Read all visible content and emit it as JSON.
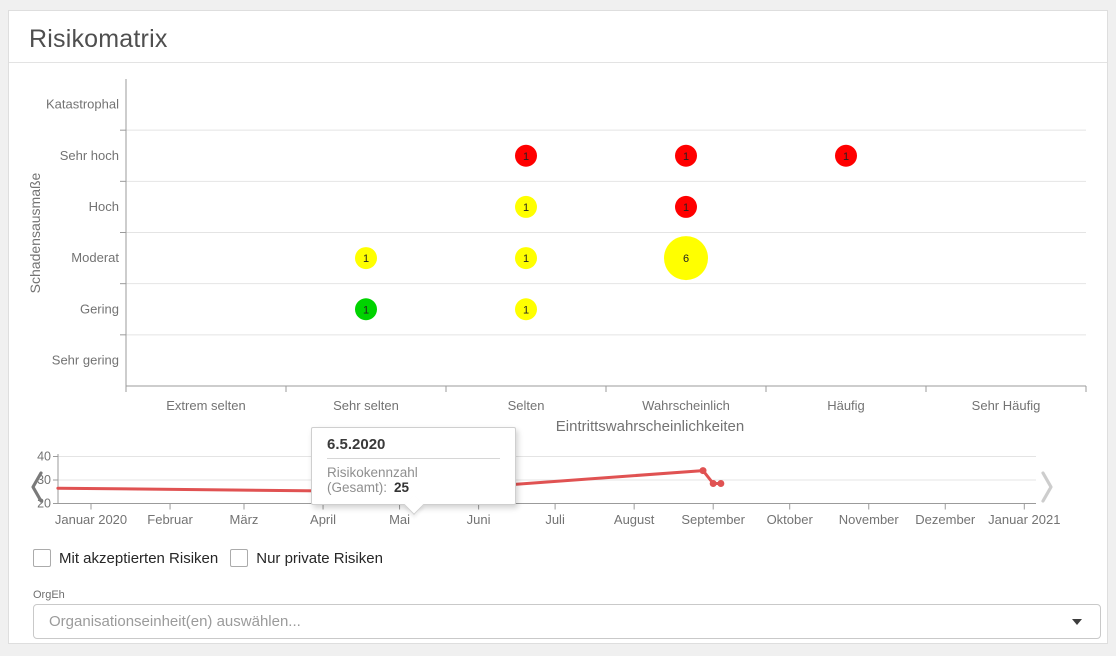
{
  "header": {
    "title": "Risikomatrix"
  },
  "colors": {
    "risk_red": "#ff0000",
    "risk_yellow": "#ffff00",
    "risk_green": "#00d300",
    "timeline_line": "#e05252",
    "axis": "#9b9b9b",
    "grid": "#e4e4e4",
    "label_text": "#737373",
    "bubble_text": "#222222"
  },
  "chart_data": [
    {
      "type": "scatter",
      "xlabel": "Eintrittswahrscheinlichkeiten",
      "ylabel": "Schadensausmaße",
      "x_categories": [
        "Extrem selten",
        "Sehr selten",
        "Selten",
        "Wahrscheinlich",
        "Häufig",
        "Sehr Häufig"
      ],
      "y_categories_top_to_bottom": [
        "Katastrophal",
        "Sehr hoch",
        "Hoch",
        "Moderat",
        "Gering",
        "Sehr gering"
      ],
      "grid": true,
      "legend": false,
      "bubbles": [
        {
          "x": "Selten",
          "y": "Sehr hoch",
          "count": 1,
          "severity": "red"
        },
        {
          "x": "Wahrscheinlich",
          "y": "Sehr hoch",
          "count": 1,
          "severity": "red"
        },
        {
          "x": "Häufig",
          "y": "Sehr hoch",
          "count": 1,
          "severity": "red"
        },
        {
          "x": "Selten",
          "y": "Hoch",
          "count": 1,
          "severity": "yellow"
        },
        {
          "x": "Wahrscheinlich",
          "y": "Hoch",
          "count": 1,
          "severity": "red"
        },
        {
          "x": "Sehr selten",
          "y": "Moderat",
          "count": 1,
          "severity": "yellow"
        },
        {
          "x": "Selten",
          "y": "Moderat",
          "count": 1,
          "severity": "yellow"
        },
        {
          "x": "Wahrscheinlich",
          "y": "Moderat",
          "count": 6,
          "severity": "yellow"
        },
        {
          "x": "Sehr selten",
          "y": "Gering",
          "count": 1,
          "severity": "green"
        },
        {
          "x": "Selten",
          "y": "Gering",
          "count": 1,
          "severity": "yellow"
        }
      ]
    },
    {
      "type": "line",
      "series": [
        {
          "name": "Risikokennzahl (Gesamt)",
          "points": [
            {
              "day": -13,
              "value": 26.5
            },
            {
              "day": 126,
              "value": 25,
              "highlight": true,
              "date": "6.5.2020"
            },
            {
              "day": 240,
              "value": 34,
              "dot": true
            },
            {
              "day": 244,
              "value": 28.5,
              "dot": true
            },
            {
              "day": 247,
              "value": 28.5,
              "dot": true
            }
          ]
        }
      ],
      "x_tick_labels": [
        "Januar 2020",
        "Februar",
        "März",
        "April",
        "Mai",
        "Juni",
        "Juli",
        "August",
        "September",
        "Oktober",
        "November",
        "Dezember",
        "Januar 2021"
      ],
      "y_ticks": [
        20,
        30,
        40
      ],
      "ylim": [
        20,
        40
      ],
      "grid": true,
      "legend": false
    }
  ],
  "tooltip": {
    "date": "6.5.2020",
    "label": "Risikokennzahl (Gesamt):",
    "value": "25"
  },
  "filters": {
    "with_accepted_label": "Mit akzeptierten Risiken",
    "only_private_label": "Nur private Risiken",
    "orgeh_label": "OrgEh",
    "orgeh_placeholder": "Organisationseinheit(en) auswählen..."
  }
}
